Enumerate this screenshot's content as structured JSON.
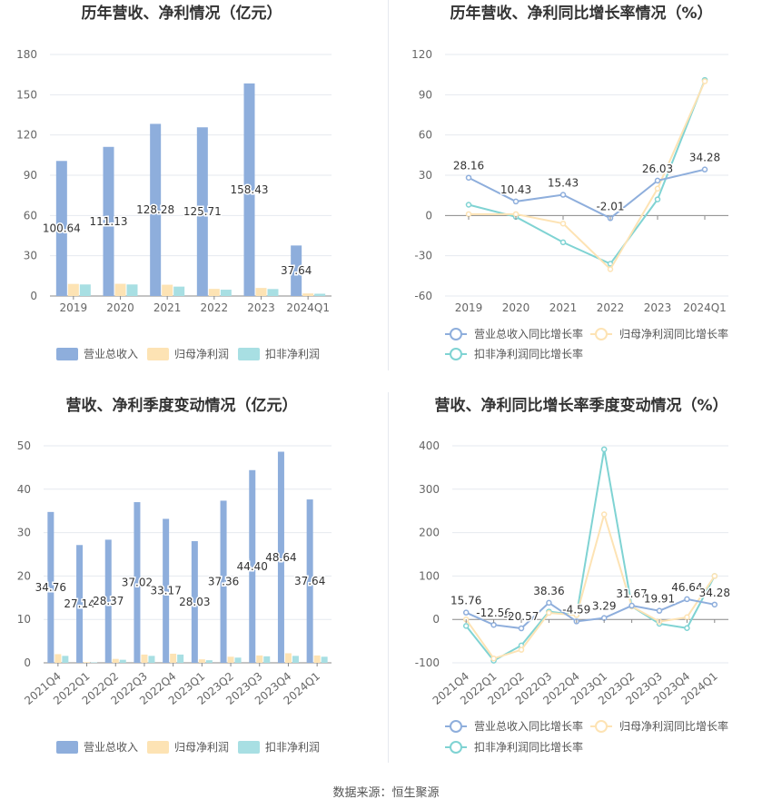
{
  "footer": {
    "source": "数据来源：恒生聚源"
  },
  "colors": {
    "revenue": "#8eaedc",
    "net_profit": "#fde3b4",
    "deducted_net_profit": "#a8dfe3",
    "deducted_line": "#7fd3d3",
    "grid": "#e6e9ef",
    "axis_text": "#666666",
    "title": "#333333"
  },
  "chart_data": [
    {
      "id": "annual-amounts",
      "type": "bar",
      "title": "历年营收、净利情况（亿元）",
      "categories": [
        "2019",
        "2020",
        "2021",
        "2022",
        "2023",
        "2024Q1"
      ],
      "series": [
        {
          "name": "营业总收入",
          "values": [
            100.64,
            111.13,
            128.28,
            125.71,
            158.43,
            37.64
          ],
          "labels": [
            "100.64",
            "111.13",
            "128.28",
            "125.71",
            "158.43",
            "37.64"
          ]
        },
        {
          "name": "归母净利润",
          "values": [
            9.0,
            9.1,
            8.4,
            5.3,
            6.0,
            1.9
          ]
        },
        {
          "name": "扣非净利润",
          "values": [
            8.6,
            8.6,
            7.0,
            4.7,
            5.2,
            1.7
          ]
        }
      ],
      "ylim": [
        0,
        180
      ],
      "yticks": [
        "0",
        "30",
        "60",
        "90",
        "120",
        "150",
        "180"
      ],
      "legend": [
        "营业总收入",
        "归母净利润",
        "扣非净利润"
      ]
    },
    {
      "id": "annual-growth",
      "type": "line",
      "title": "历年营收、净利同比增长率情况（%）",
      "categories": [
        "2019",
        "2020",
        "2021",
        "2022",
        "2023",
        "2024Q1"
      ],
      "series": [
        {
          "name": "营业总收入同比增长率",
          "values": [
            28.16,
            10.43,
            15.43,
            -2.01,
            26.03,
            34.28
          ],
          "labels": [
            "28.16",
            "10.43",
            "15.43",
            "-2.01",
            "26.03",
            "34.28"
          ]
        },
        {
          "name": "归母净利润同比增长率",
          "values": [
            1.0,
            1.0,
            -6.0,
            -40.0,
            20.0,
            100.0
          ]
        },
        {
          "name": "扣非净利润同比增长率",
          "values": [
            8.0,
            -1.0,
            -20.0,
            -36.0,
            12.0,
            101.0
          ]
        }
      ],
      "ylim": [
        -60,
        120
      ],
      "yticks": [
        "-60",
        "-30",
        "0",
        "30",
        "60",
        "90",
        "120"
      ],
      "legend": [
        "营业总收入同比增长率",
        "归母净利润同比增长率",
        "扣非净利润同比增长率"
      ]
    },
    {
      "id": "quarterly-amounts",
      "type": "bar",
      "title": "营收、净利季度变动情况（亿元）",
      "categories": [
        "2021Q4",
        "2022Q1",
        "2022Q2",
        "2022Q3",
        "2022Q4",
        "2023Q1",
        "2023Q2",
        "2023Q3",
        "2023Q4",
        "2024Q1"
      ],
      "series": [
        {
          "name": "营业总收入",
          "values": [
            34.76,
            27.14,
            28.37,
            37.02,
            33.17,
            28.03,
            37.36,
            44.4,
            48.64,
            37.64
          ],
          "labels": [
            "34.76",
            "27.14",
            "28.37",
            "37.02",
            "33.17",
            "28.03",
            "37.36",
            "44.40",
            "48.64",
            "37.64"
          ]
        },
        {
          "name": "归母净利润",
          "values": [
            2.0,
            0.15,
            0.9,
            1.9,
            2.1,
            0.8,
            1.4,
            1.7,
            2.2,
            1.7
          ]
        },
        {
          "name": "扣非净利润",
          "values": [
            1.6,
            0.1,
            0.7,
            1.6,
            1.9,
            0.6,
            1.2,
            1.5,
            1.6,
            1.4
          ]
        }
      ],
      "ylim": [
        0,
        50
      ],
      "yticks": [
        "0",
        "10",
        "20",
        "30",
        "40",
        "50"
      ],
      "legend": [
        "营业总收入",
        "归母净利润",
        "扣非净利润"
      ]
    },
    {
      "id": "quarterly-growth",
      "type": "line",
      "title": "营收、净利同比增长率季度变动情况（%）",
      "categories": [
        "2021Q4",
        "2022Q1",
        "2022Q2",
        "2022Q3",
        "2022Q4",
        "2023Q1",
        "2023Q2",
        "2023Q3",
        "2023Q4",
        "2024Q1"
      ],
      "series": [
        {
          "name": "营业总收入同比增长率",
          "values": [
            15.76,
            -12.56,
            -20.57,
            38.36,
            -4.59,
            3.29,
            31.67,
            19.91,
            46.64,
            34.28
          ],
          "labels": [
            "15.76",
            "-12.56",
            "-20.57",
            "38.36",
            "-4.59",
            "3.29",
            "31.67",
            "19.91",
            "46.64",
            "34.28"
          ]
        },
        {
          "name": "归母净利润同比增长率",
          "values": [
            0,
            -90,
            -70,
            15,
            10,
            242,
            30,
            -5,
            5,
            100
          ]
        },
        {
          "name": "扣非净利润同比增长率",
          "values": [
            -15,
            -95,
            -60,
            18,
            10,
            392,
            30,
            -10,
            -20,
            100
          ]
        }
      ],
      "ylim": [
        -100,
        400
      ],
      "yticks": [
        "-100",
        "0",
        "100",
        "200",
        "300",
        "400"
      ],
      "legend": [
        "营业总收入同比增长率",
        "归母净利润同比增长率",
        "扣非净利润同比增长率"
      ]
    }
  ]
}
